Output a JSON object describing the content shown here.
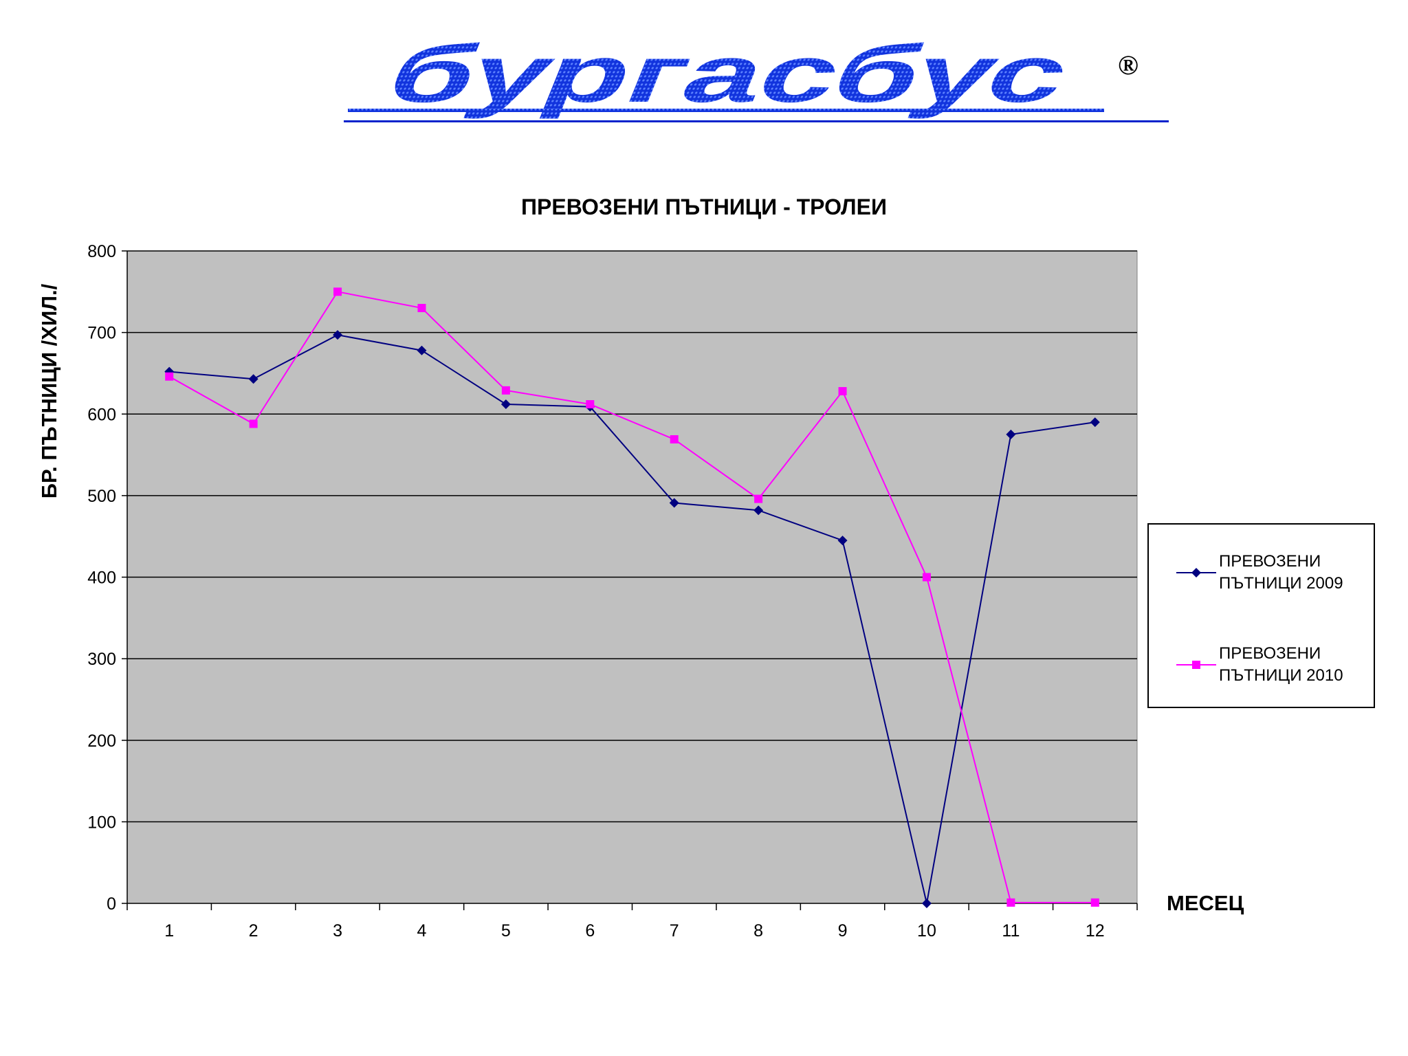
{
  "logo": {
    "text": "бургасбус",
    "mark": "®"
  },
  "chart_data": {
    "type": "line",
    "title": "ПРЕВОЗЕНИ ПЪТНИЦИ - ТРОЛЕИ",
    "xlabel": "МЕСЕЦ",
    "ylabel": "БР. ПЪТНИЦИ /ХИЛ./",
    "categories": [
      "1",
      "2",
      "3",
      "4",
      "5",
      "6",
      "7",
      "8",
      "9",
      "10",
      "11",
      "12"
    ],
    "y_ticks": [
      "0",
      "100",
      "200",
      "300",
      "400",
      "500",
      "600",
      "700",
      "800"
    ],
    "ylim": [
      0,
      800
    ],
    "grid": "horizontal",
    "legend_position": "right",
    "plot_background": "#C0C0C0",
    "series": [
      {
        "name": "ПРЕВОЗЕНИ ПЪТНИЦИ 2009",
        "color": "#000080",
        "marker": "diamond",
        "values": [
          652,
          643,
          697,
          678,
          612,
          609,
          491,
          482,
          445,
          0,
          575,
          590
        ]
      },
      {
        "name": "ПРЕВОЗЕНИ ПЪТНИЦИ 2010",
        "color": "#FF00FF",
        "marker": "square",
        "values": [
          646,
          588,
          750,
          730,
          629,
          612,
          569,
          496,
          628,
          400,
          1,
          1
        ]
      }
    ]
  }
}
